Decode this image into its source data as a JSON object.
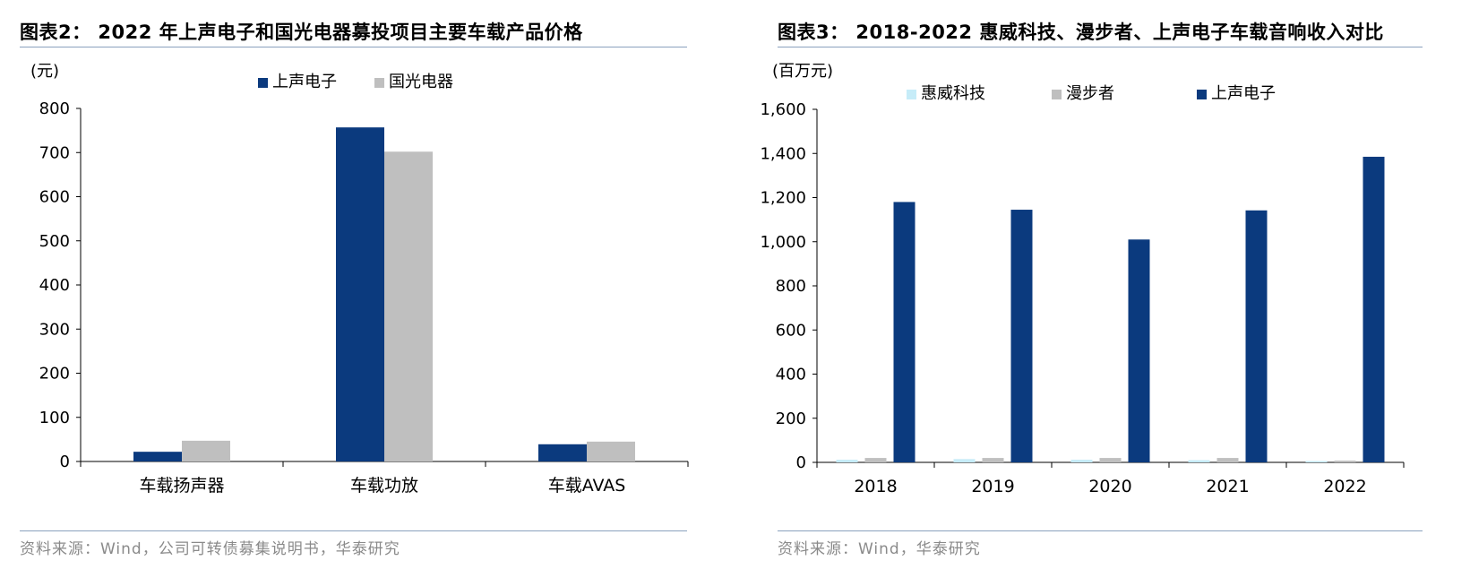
{
  "left": {
    "title": "图表2： 2022 年上声电子和国光电器募投项目主要车载产品价格",
    "source": "资料来源：Wind，公司可转债募集说明书，华泰研究"
  },
  "right": {
    "title": "图表3： 2018-2022 惠威科技、漫步者、上声电子车载音响收入对比",
    "source": "资料来源：Wind，华泰研究"
  },
  "chart_data": [
    {
      "type": "bar",
      "title": "2022 年上声电子和国光电器募投项目主要车载产品价格",
      "ylabel": "(元)",
      "categories": [
        "车载扬声器",
        "车载功放",
        "车载AVAS"
      ],
      "series": [
        {
          "name": "上声电子",
          "color": "#0b3a7e",
          "values": [
            22,
            757,
            39
          ]
        },
        {
          "name": "国光电器",
          "color": "#bfbfbf",
          "values": [
            47,
            702,
            45
          ]
        }
      ],
      "ylim": [
        0,
        800
      ],
      "yticks": [
        0,
        100,
        200,
        300,
        400,
        500,
        600,
        700,
        800
      ],
      "ytick_labels": [
        "0",
        "100",
        "200",
        "300",
        "400",
        "500",
        "600",
        "700",
        "800"
      ],
      "grid": false,
      "legend": "top-center"
    },
    {
      "type": "bar",
      "title": "2018-2022 惠威科技、漫步者、上声电子车载音响收入对比",
      "ylabel": "(百万元)",
      "categories": [
        "2018",
        "2019",
        "2020",
        "2021",
        "2022"
      ],
      "series": [
        {
          "name": "惠威科技",
          "color": "#c6ecf8",
          "values": [
            12,
            15,
            12,
            10,
            6
          ]
        },
        {
          "name": "漫步者",
          "color": "#bfbfbf",
          "values": [
            20,
            20,
            20,
            20,
            8
          ]
        },
        {
          "name": "上声电子",
          "color": "#0b3a7e",
          "values": [
            1180,
            1145,
            1010,
            1142,
            1385
          ]
        }
      ],
      "ylim": [
        0,
        1600
      ],
      "yticks": [
        0,
        200,
        400,
        600,
        800,
        1000,
        1200,
        1400,
        1600
      ],
      "ytick_labels": [
        "0",
        "200",
        "400",
        "600",
        "800",
        "1,000",
        "1,200",
        "1,400",
        "1,600"
      ],
      "grid": false,
      "legend": "top-center"
    }
  ]
}
